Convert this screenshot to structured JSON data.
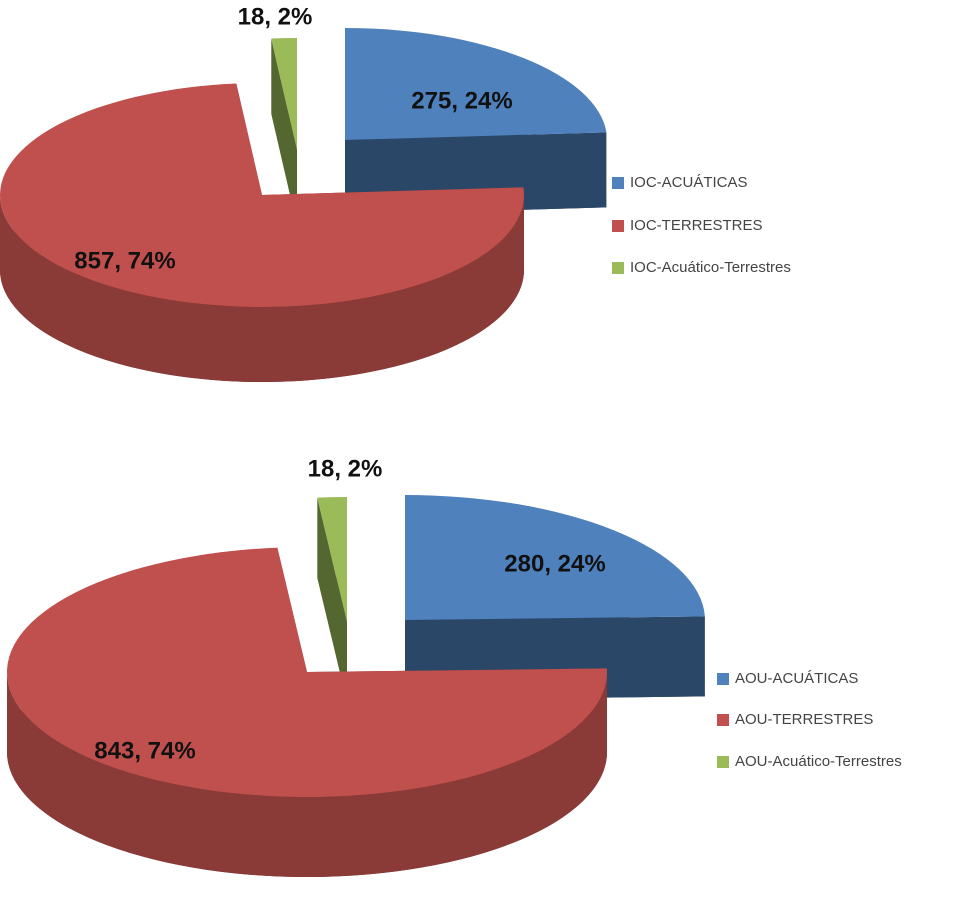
{
  "chart_data": [
    {
      "type": "pie",
      "categories": [
        "IOC-ACUÁTICAS",
        "IOC-TERRESTRES",
        "IOC-Acuático-Terrestres"
      ],
      "values": [
        275,
        857,
        18
      ],
      "value_labels": [
        "275, 24%",
        "857, 74%",
        "18, 2%"
      ],
      "colors": [
        "#4f81bd",
        "#c0504d",
        "#9bbb59"
      ],
      "legend": "right"
    },
    {
      "type": "pie",
      "categories": [
        "AOU-ACUÁTICAS",
        "AOU-TERRESTRES",
        "AOU-Acuático-Terrestres"
      ],
      "values": [
        280,
        843,
        18
      ],
      "value_labels": [
        "280, 24%",
        "843, 74%",
        "18, 2%"
      ],
      "colors": [
        "#4f81bd",
        "#c0504d",
        "#9bbb59"
      ],
      "legend": "right"
    }
  ]
}
